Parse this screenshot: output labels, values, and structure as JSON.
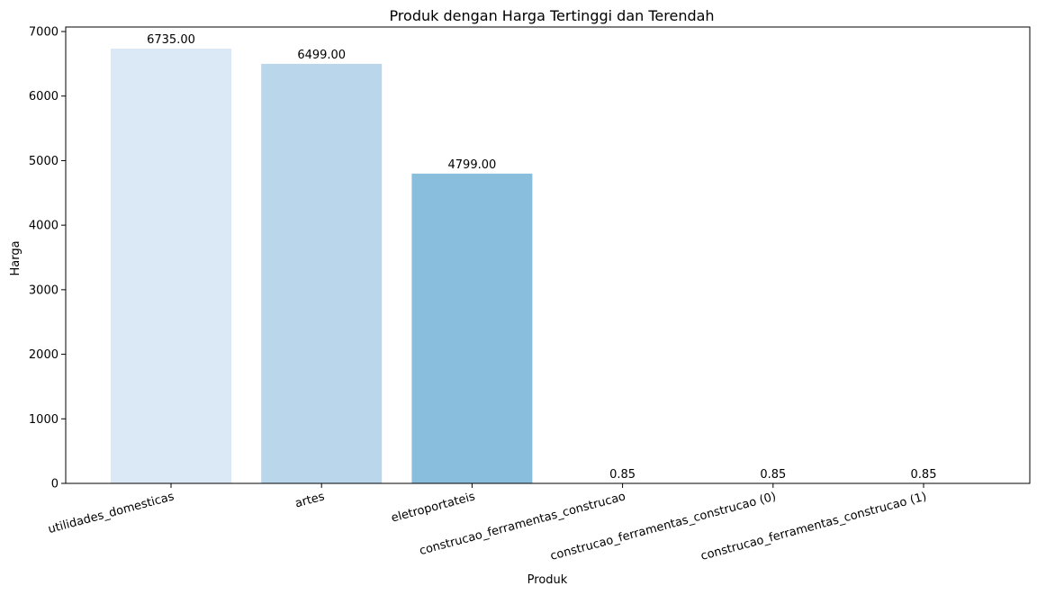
{
  "chart_data": {
    "type": "bar",
    "title": "Produk dengan Harga Tertinggi dan Terendah",
    "xlabel": "Produk",
    "ylabel": "Harga",
    "categories": [
      "utilidades_domesticas",
      "artes",
      "eletroportateis",
      "construcao_ferramentas_construcao",
      "construcao_ferramentas_construcao (0)",
      "construcao_ferramentas_construcao (1)"
    ],
    "values": [
      6735.0,
      6499.0,
      4799.0,
      0.85,
      0.85,
      0.85
    ],
    "data_labels": [
      "6735.00",
      "6499.00",
      "4799.00",
      "0.85",
      "0.85",
      "0.85"
    ],
    "colors": [
      "#dbe8f5",
      "#bad6eb",
      "#89bedc",
      "#539ecd",
      "#2b7bba",
      "#0b559f"
    ],
    "ylim": [
      0,
      7070
    ],
    "yticks": [
      0,
      1000,
      2000,
      3000,
      4000,
      5000,
      6000,
      7000
    ],
    "ytick_labels": [
      "0",
      "1000",
      "2000",
      "3000",
      "4000",
      "5000",
      "6000",
      "7000"
    ],
    "xtick_rotation": -15,
    "grid": false,
    "legend": "none"
  }
}
